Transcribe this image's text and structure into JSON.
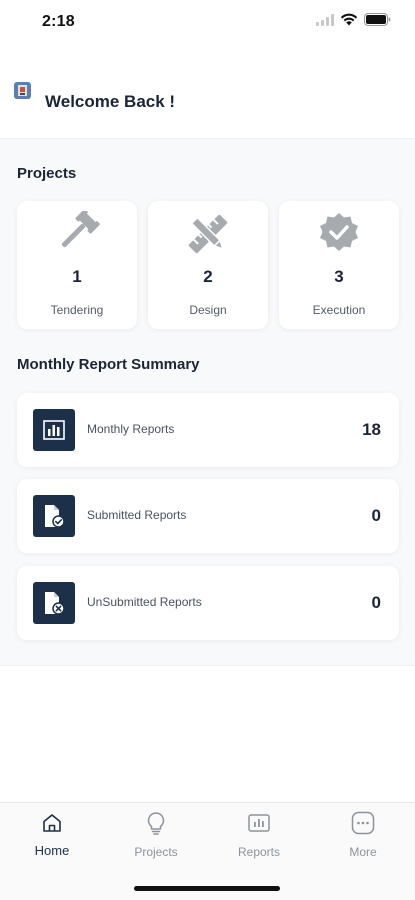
{
  "status_bar": {
    "time": "2:18"
  },
  "header": {
    "welcome_text": "Welcome Back !"
  },
  "projects": {
    "title": "Projects",
    "cards": [
      {
        "icon": "gavel-icon",
        "count": "1",
        "label": "Tendering"
      },
      {
        "icon": "pencil-ruler-icon",
        "count": "2",
        "label": "Design"
      },
      {
        "icon": "badge-check-icon",
        "count": "3",
        "label": "Execution"
      }
    ]
  },
  "reports": {
    "title": "Monthly Report Summary",
    "items": [
      {
        "icon": "bar-chart-icon",
        "label": "Monthly Reports",
        "value": "18"
      },
      {
        "icon": "document-check-icon",
        "label": "Submitted Reports",
        "value": "0"
      },
      {
        "icon": "document-cancel-icon",
        "label": "UnSubmitted Reports",
        "value": "0"
      }
    ]
  },
  "bottom_nav": {
    "items": [
      {
        "icon": "home-icon",
        "label": "Home",
        "active": true
      },
      {
        "icon": "lightbulb-icon",
        "label": "Projects",
        "active": false
      },
      {
        "icon": "reports-icon",
        "label": "Reports",
        "active": false
      },
      {
        "icon": "more-icon",
        "label": "More",
        "active": false
      }
    ]
  },
  "colors": {
    "accent": "#1d3049",
    "muted_icon": "#a7abb0",
    "panel_background": "#f8f9fa"
  }
}
